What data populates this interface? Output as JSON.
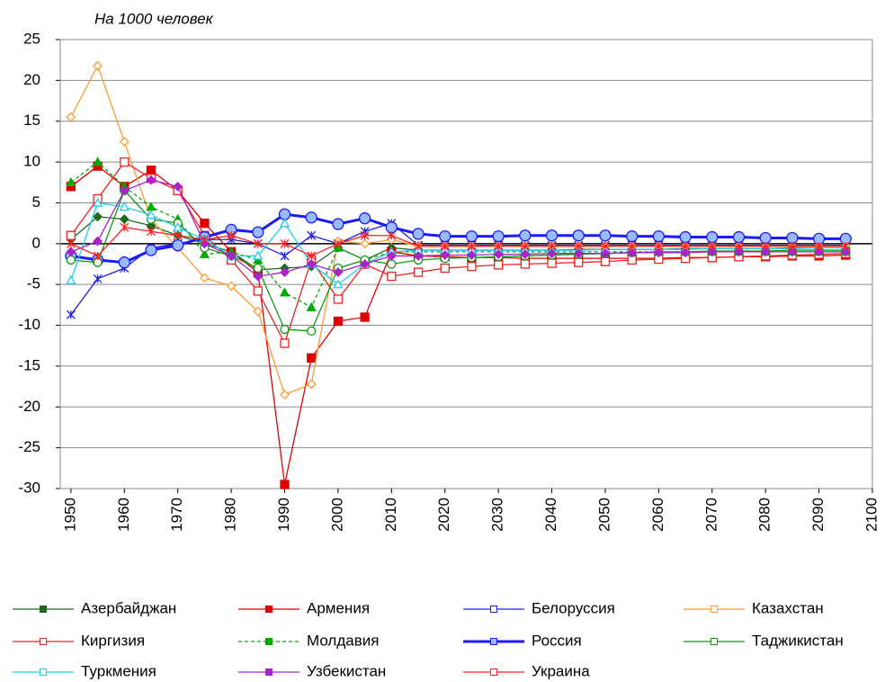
{
  "chart_data": {
    "type": "line",
    "subtitle": "На 1000 человек",
    "x": [
      1950,
      1955,
      1960,
      1965,
      1970,
      1975,
      1980,
      1985,
      1990,
      1995,
      2000,
      2005,
      2010,
      2015,
      2020,
      2025,
      2030,
      2035,
      2040,
      2045,
      2050,
      2055,
      2060,
      2065,
      2070,
      2075,
      2080,
      2085,
      2090,
      2095
    ],
    "xlim": [
      1948,
      2100
    ],
    "xticks": [
      1950,
      1960,
      1970,
      1980,
      1990,
      2000,
      2010,
      2020,
      2030,
      2040,
      2050,
      2060,
      2070,
      2080,
      2090,
      2100
    ],
    "ylim": [
      -30,
      25
    ],
    "yticks": [
      -30,
      -25,
      -20,
      -15,
      -10,
      -5,
      0,
      5,
      10,
      15,
      20,
      25
    ],
    "grid": true,
    "series": [
      {
        "name": "Азербайджан",
        "color": "#1e6b1e",
        "marker": "diamond",
        "marker_fill": true,
        "values": [
          0.5,
          3.3,
          3,
          2.2,
          1,
          0,
          -1,
          -3.2,
          -3,
          -2.8,
          -0.5,
          -2,
          -0.5,
          -0.8,
          -0.8,
          -0.8,
          -0.8,
          -0.8,
          -0.8,
          -0.7,
          -0.7,
          -0.7,
          -0.7,
          -0.6,
          -0.6,
          -0.6,
          -0.6,
          -0.5,
          -0.5,
          -0.5
        ]
      },
      {
        "name": "Армения",
        "color": "#e00000",
        "marker": "square",
        "marker_fill": true,
        "values": [
          7,
          9.5,
          7,
          9,
          6.5,
          2.5,
          -1,
          -3.5,
          -29.5,
          -14,
          -9.5,
          -9,
          -1,
          -1.5,
          -1.6,
          -1.7,
          -1.7,
          -1.8,
          -1.8,
          -1.8,
          -1.8,
          -1.8,
          -1.8,
          -1.7,
          -1.7,
          -1.6,
          -1.6,
          -1.5,
          -1.5,
          -1.4
        ]
      },
      {
        "name": "Белоруссия",
        "color": "#2020e0",
        "marker": "asterisk",
        "marker_fill": false,
        "values": [
          -8.7,
          -4.3,
          -3,
          -0.5,
          0,
          0.5,
          0.5,
          0,
          -1.5,
          1,
          0,
          1.5,
          2.5,
          -0.2,
          -0.2,
          -0.2,
          -0.2,
          -0.2,
          -0.2,
          -0.2,
          -0.2,
          -0.2,
          -0.2,
          -0.2,
          -0.2,
          -0.2,
          -0.2,
          -0.2,
          -0.2,
          -0.2
        ]
      },
      {
        "name": "Казахстан",
        "color": "#ff9933",
        "marker": "diamond",
        "marker_fill": false,
        "values": [
          15.5,
          21.8,
          12.5,
          3,
          -0.5,
          -4.2,
          -5.2,
          -8.3,
          -18.5,
          -17.2,
          0.3,
          0,
          0.5,
          -0.3,
          -0.3,
          -0.3,
          -0.3,
          -0.3,
          -0.3,
          -0.3,
          -0.3,
          -0.3,
          -0.3,
          -0.3,
          -0.3,
          -0.3,
          -0.3,
          -0.3,
          -0.3,
          -0.3
        ]
      },
      {
        "name": "Киргизия",
        "color": "#ee2222",
        "marker": "square",
        "marker_fill": false,
        "values": [
          1,
          5.5,
          10,
          8,
          6.5,
          1,
          -2,
          -5.8,
          -12.2,
          -2,
          -6.8,
          -2.5,
          -4,
          -3.5,
          -3,
          -2.8,
          -2.6,
          -2.5,
          -2.4,
          -2.3,
          -2.2,
          -2,
          -1.9,
          -1.8,
          -1.7,
          -1.6,
          -1.5,
          -1.4,
          -1.3,
          -1.2
        ]
      },
      {
        "name": "Молдавия",
        "color": "#00aa00",
        "marker": "triangle",
        "marker_fill": true,
        "dash": true,
        "values": [
          7.5,
          10,
          7,
          4.5,
          3,
          -1.3,
          -1,
          -2,
          -6,
          -7.8,
          -0.5,
          -2,
          -1,
          -1,
          -1,
          -1,
          -1,
          -1,
          -1,
          -1,
          -1,
          -1,
          -1,
          -1,
          -1,
          -1,
          -1,
          -1,
          -1,
          -1
        ]
      },
      {
        "name": "Россия",
        "color": "#1a1aff",
        "marker": "circle",
        "marker_fill": true,
        "marker_color": "#99bbff",
        "line_width": 3,
        "values": [
          -1.5,
          -2,
          -2.3,
          -0.8,
          -0.2,
          0.8,
          1.7,
          1.4,
          3.6,
          3.2,
          2.4,
          3.1,
          2,
          1.2,
          0.9,
          0.9,
          0.9,
          1,
          1,
          1,
          1,
          0.9,
          0.9,
          0.8,
          0.8,
          0.8,
          0.7,
          0.7,
          0.6,
          0.6
        ]
      },
      {
        "name": "Таджикистан",
        "color": "#119911",
        "marker": "circle",
        "marker_fill": false,
        "values": [
          -2,
          -2.3,
          6.5,
          3,
          2.5,
          -0.5,
          -1.5,
          -3,
          -10.5,
          -10.7,
          -3,
          -2,
          -2.5,
          -2,
          -1.8,
          -1.7,
          -1.6,
          -1.5,
          -1.4,
          -1.3,
          -1.2,
          -1.1,
          -1,
          -1,
          -0.9,
          -0.9,
          -0.9,
          -0.8,
          -0.8,
          -0.8
        ]
      },
      {
        "name": "Туркмения",
        "color": "#22ccee",
        "marker": "triangle",
        "marker_fill": false,
        "values": [
          -4.5,
          5,
          4.5,
          3.5,
          2,
          0.5,
          -1.5,
          -1.5,
          2.5,
          -2.5,
          -5,
          -2.5,
          -1,
          -0.8,
          -0.8,
          -0.8,
          -0.8,
          -0.8,
          -0.8,
          -0.8,
          -0.7,
          -0.7,
          -0.7,
          -0.7,
          -0.6,
          -0.6,
          -0.6,
          -0.6,
          -0.5,
          -0.5
        ]
      },
      {
        "name": "Узбекистан",
        "color": "#aa22cc",
        "marker": "diamond",
        "marker_fill": true,
        "values": [
          -1,
          0.3,
          6.5,
          7.8,
          7,
          0,
          -1.5,
          -4,
          -3.5,
          -2.5,
          -3.5,
          -2.5,
          -1.5,
          -1.5,
          -1.4,
          -1.4,
          -1.3,
          -1.3,
          -1.2,
          -1.2,
          -1.2,
          -1.1,
          -1.1,
          -1.1,
          -1,
          -1,
          -1,
          -1,
          -1,
          -1
        ]
      },
      {
        "name": "Украина",
        "color": "#ff2020",
        "marker": "asterisk",
        "marker_fill": false,
        "values": [
          0,
          -1.5,
          2,
          1.5,
          1,
          0.5,
          1,
          0,
          0,
          -1.5,
          0,
          1,
          1,
          -0.3,
          -0.3,
          -0.3,
          -0.3,
          -0.3,
          -0.3,
          -0.3,
          -0.3,
          -0.3,
          -0.3,
          -0.3,
          -0.3,
          -0.3,
          -0.3,
          -0.3,
          -0.3,
          -0.3
        ]
      }
    ]
  }
}
